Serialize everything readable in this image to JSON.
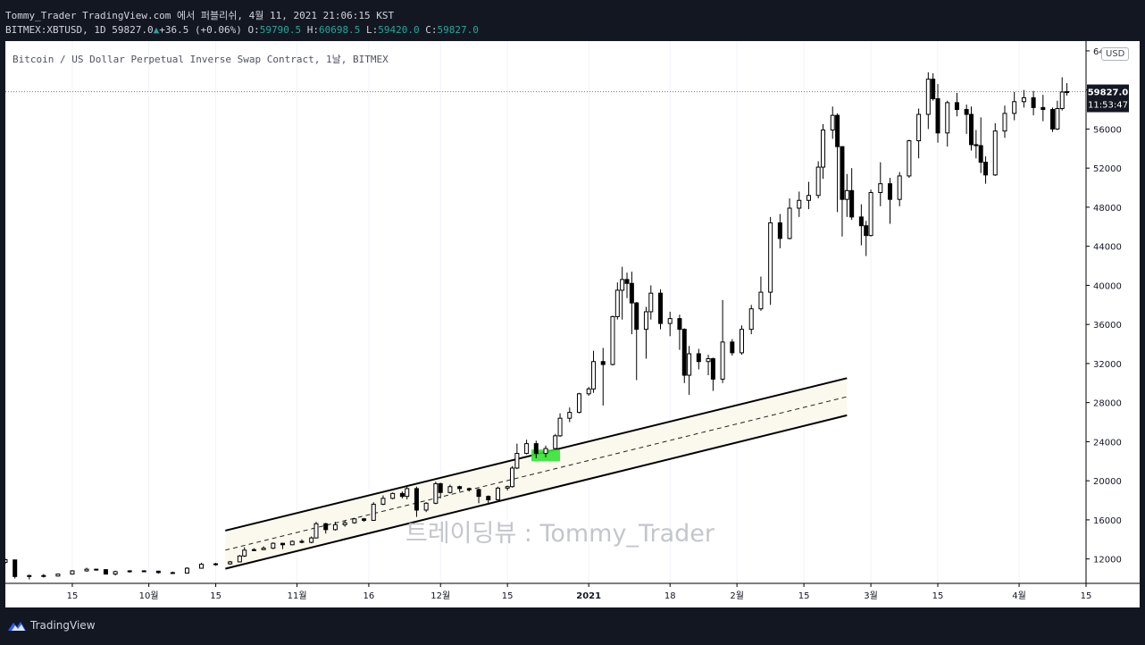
{
  "header": {
    "line1": "Tommy_Trader TradingView.com 에서 퍼블리쉬, 4월 11, 2021 21:06:15 KST",
    "symbol": "BITMEX:XBTUSD, 1D",
    "last": "59827.0",
    "arrow": "▲",
    "change": "+36.5 (+0.06%)",
    "o_label": "O:",
    "o": "59790.5",
    "h_label": "H:",
    "h": "60698.5",
    "l_label": "L:",
    "l": "59420.0",
    "c_label": "C:",
    "c": "59827.0"
  },
  "chart": {
    "title": "Bitcoin / US Dollar Perpetual Inverse Swap Contract, 1날, BITMEX",
    "currency": "USD",
    "watermark": "트레이딩뷰 : Tommy_Trader",
    "price_label": "59827.0",
    "countdown": "11:53:47"
  },
  "footer": {
    "brand": "TradingView"
  },
  "colors": {
    "background": "#131722",
    "chart_bg": "#ffffff",
    "candle": "#000000",
    "channel_fill": "#fbf9ee",
    "highlight": "#33e233",
    "price_tag": "#131722"
  },
  "chart_data": {
    "type": "candlestick",
    "ylim": [
      9500,
      65000
    ],
    "yticks": [
      12000,
      16000,
      20000,
      24000,
      28000,
      32000,
      36000,
      40000,
      44000,
      48000,
      52000,
      56000,
      60000,
      64000
    ],
    "ytick_labels": [
      "12000",
      "16000",
      "20000",
      "24000",
      "28000",
      "32000",
      "36000",
      "40000",
      "44000",
      "48000",
      "52000",
      "56000",
      "60000",
      "64000"
    ],
    "x_range": [
      "2020-09-01",
      "2021-04-15"
    ],
    "xticks": [
      {
        "date": "2020-09-15",
        "label": "15"
      },
      {
        "date": "2020-10-01",
        "label": "10월"
      },
      {
        "date": "2020-10-15",
        "label": "15"
      },
      {
        "date": "2020-11-01",
        "label": "11월"
      },
      {
        "date": "2020-11-16",
        "label": "16"
      },
      {
        "date": "2020-12-01",
        "label": "12월"
      },
      {
        "date": "2020-12-15",
        "label": "15"
      },
      {
        "date": "2021-01-01",
        "label": "2021"
      },
      {
        "date": "2021-01-18",
        "label": "18"
      },
      {
        "date": "2021-02-01",
        "label": "2월"
      },
      {
        "date": "2021-02-15",
        "label": "15"
      },
      {
        "date": "2021-03-01",
        "label": "3월"
      },
      {
        "date": "2021-03-15",
        "label": "15"
      },
      {
        "date": "2021-04-01",
        "label": "4월"
      },
      {
        "date": "2021-04-15",
        "label": "15"
      }
    ],
    "last_price": 59827.0,
    "channel": {
      "upper": [
        {
          "date": "2020-10-17",
          "y": 14900
        },
        {
          "date": "2021-02-24",
          "y": 30500
        }
      ],
      "middle": [
        {
          "date": "2020-10-17",
          "y": 12900
        },
        {
          "date": "2021-02-24",
          "y": 28600
        }
      ],
      "lower": [
        {
          "date": "2020-10-17",
          "y": 11000
        },
        {
          "date": "2021-02-24",
          "y": 26700
        }
      ]
    },
    "highlight_box": {
      "x0": "2020-12-20",
      "x1": "2020-12-26",
      "y0": 22000,
      "y1": 23200
    },
    "ohlc": [
      [
        "2020-09-01",
        11660,
        12050,
        11500,
        11920
      ],
      [
        "2020-09-03",
        11900,
        11920,
        10000,
        10200
      ],
      [
        "2020-09-06",
        10200,
        10400,
        9900,
        10300
      ],
      [
        "2020-09-09",
        10300,
        10450,
        10100,
        10250
      ],
      [
        "2020-09-12",
        10250,
        10500,
        10200,
        10450
      ],
      [
        "2020-09-15",
        10450,
        10850,
        10400,
        10780
      ],
      [
        "2020-09-18",
        10780,
        11100,
        10700,
        10950
      ],
      [
        "2020-09-20",
        10950,
        11000,
        10800,
        10900
      ],
      [
        "2020-09-22",
        10900,
        10950,
        10400,
        10450
      ],
      [
        "2020-09-24",
        10450,
        10800,
        10300,
        10700
      ],
      [
        "2020-09-27",
        10700,
        10850,
        10600,
        10780
      ],
      [
        "2020-09-30",
        10780,
        10850,
        10650,
        10750
      ],
      [
        "2020-10-03",
        10750,
        10800,
        10500,
        10600
      ],
      [
        "2020-10-06",
        10600,
        10700,
        10500,
        10550
      ],
      [
        "2020-10-09",
        10550,
        11150,
        10500,
        11050
      ],
      [
        "2020-10-12",
        11050,
        11600,
        11000,
        11450
      ],
      [
        "2020-10-15",
        11450,
        11600,
        11300,
        11500
      ],
      [
        "2020-10-18",
        11500,
        11800,
        11400,
        11700
      ],
      [
        "2020-10-20",
        11700,
        12400,
        11650,
        12300
      ],
      [
        "2020-10-21",
        12300,
        13200,
        12200,
        12900
      ],
      [
        "2020-10-23",
        12900,
        13100,
        12800,
        12950
      ],
      [
        "2020-10-25",
        12950,
        13300,
        12900,
        13100
      ],
      [
        "2020-10-27",
        13100,
        13700,
        13000,
        13600
      ],
      [
        "2020-10-29",
        13600,
        13650,
        13000,
        13450
      ],
      [
        "2020-10-31",
        13450,
        13900,
        13400,
        13800
      ],
      [
        "2020-11-02",
        13800,
        14000,
        13600,
        13700
      ],
      [
        "2020-11-04",
        13700,
        14300,
        13600,
        14150
      ],
      [
        "2020-11-05",
        14150,
        15800,
        14100,
        15600
      ],
      [
        "2020-11-07",
        15600,
        15700,
        14600,
        15000
      ],
      [
        "2020-11-09",
        15000,
        15800,
        14900,
        15500
      ],
      [
        "2020-11-11",
        15500,
        15900,
        15300,
        15700
      ],
      [
        "2020-11-13",
        15700,
        16200,
        15600,
        16100
      ],
      [
        "2020-11-15",
        16100,
        16200,
        15800,
        15950
      ],
      [
        "2020-11-17",
        15950,
        17800,
        15900,
        17600
      ],
      [
        "2020-11-19",
        17600,
        18500,
        17500,
        18200
      ],
      [
        "2020-11-21",
        18200,
        18800,
        18100,
        18700
      ],
      [
        "2020-11-23",
        18700,
        18900,
        18200,
        18400
      ],
      [
        "2020-11-24",
        18400,
        19400,
        18100,
        19200
      ],
      [
        "2020-11-26",
        19200,
        19400,
        16300,
        17000
      ],
      [
        "2020-11-28",
        17000,
        17800,
        16800,
        17700
      ],
      [
        "2020-11-30",
        17700,
        19900,
        17600,
        19700
      ],
      [
        "2020-12-01",
        19700,
        19800,
        18200,
        18800
      ],
      [
        "2020-12-03",
        18800,
        19600,
        18700,
        19400
      ],
      [
        "2020-12-05",
        19400,
        19500,
        18900,
        19200
      ],
      [
        "2020-12-07",
        19200,
        19300,
        18900,
        19100
      ],
      [
        "2020-12-09",
        19100,
        19200,
        17700,
        18400
      ],
      [
        "2020-12-11",
        18400,
        18500,
        17600,
        18050
      ],
      [
        "2020-12-13",
        18050,
        19400,
        18000,
        19250
      ],
      [
        "2020-12-15",
        19250,
        19500,
        19000,
        19400
      ],
      [
        "2020-12-16",
        19400,
        21500,
        19300,
        21300
      ],
      [
        "2020-12-17",
        21300,
        23800,
        21200,
        22800
      ],
      [
        "2020-12-19",
        22800,
        24200,
        22700,
        23800
      ],
      [
        "2020-12-21",
        23800,
        24100,
        22300,
        22800
      ],
      [
        "2020-12-23",
        22800,
        23600,
        22400,
        23300
      ],
      [
        "2020-12-25",
        23300,
        24800,
        23200,
        24600
      ],
      [
        "2020-12-26",
        24600,
        26900,
        24500,
        26400
      ],
      [
        "2020-12-28",
        26400,
        27500,
        26000,
        27000
      ],
      [
        "2020-12-30",
        27000,
        29000,
        26900,
        28900
      ],
      [
        "2021-01-01",
        28900,
        29600,
        28700,
        29400
      ],
      [
        "2021-01-02",
        29400,
        33300,
        29000,
        32200
      ],
      [
        "2021-01-04",
        32200,
        33600,
        27700,
        31900
      ],
      [
        "2021-01-06",
        31900,
        36900,
        31800,
        36800
      ],
      [
        "2021-01-07",
        36800,
        40300,
        36500,
        39500
      ],
      [
        "2021-01-08",
        39500,
        41900,
        36500,
        40600
      ],
      [
        "2021-01-09",
        40600,
        41300,
        38700,
        40200
      ],
      [
        "2021-01-10",
        40200,
        41400,
        35000,
        38200
      ],
      [
        "2021-01-11",
        38200,
        38300,
        30300,
        35500
      ],
      [
        "2021-01-13",
        35500,
        37800,
        32500,
        37300
      ],
      [
        "2021-01-14",
        37300,
        40000,
        36500,
        39200
      ],
      [
        "2021-01-16",
        39200,
        39600,
        35500,
        36100
      ],
      [
        "2021-01-18",
        36100,
        37300,
        34800,
        36600
      ],
      [
        "2021-01-20",
        36600,
        37000,
        33400,
        35500
      ],
      [
        "2021-01-21",
        35500,
        35600,
        30000,
        30800
      ],
      [
        "2021-01-22",
        30800,
        33800,
        28800,
        33000
      ],
      [
        "2021-01-24",
        33000,
        33500,
        31400,
        32200
      ],
      [
        "2021-01-26",
        32200,
        32900,
        30800,
        32500
      ],
      [
        "2021-01-27",
        32500,
        32600,
        29200,
        30400
      ],
      [
        "2021-01-29",
        30400,
        38500,
        30000,
        34200
      ],
      [
        "2021-01-31",
        34200,
        34500,
        32800,
        33100
      ],
      [
        "2021-02-02",
        33100,
        35900,
        32900,
        35500
      ],
      [
        "2021-02-04",
        35500,
        38000,
        35000,
        37600
      ],
      [
        "2021-02-06",
        37600,
        40900,
        37400,
        39300
      ],
      [
        "2021-02-08",
        39300,
        47000,
        38000,
        46400
      ],
      [
        "2021-02-10",
        46400,
        47300,
        43800,
        44800
      ],
      [
        "2021-02-12",
        44800,
        48900,
        44700,
        47900
      ],
      [
        "2021-02-14",
        47900,
        49600,
        47000,
        48700
      ],
      [
        "2021-02-16",
        48700,
        50600,
        47800,
        49200
      ],
      [
        "2021-02-18",
        49200,
        52700,
        48900,
        52100
      ],
      [
        "2021-02-19",
        52100,
        56500,
        50900,
        55900
      ],
      [
        "2021-02-21",
        55900,
        58300,
        55000,
        57400
      ],
      [
        "2021-02-22",
        57400,
        57600,
        47500,
        54200
      ],
      [
        "2021-02-23",
        54200,
        54200,
        45000,
        48800
      ],
      [
        "2021-02-24",
        48800,
        51400,
        47000,
        49700
      ],
      [
        "2021-02-25",
        49700,
        52000,
        46700,
        47000
      ],
      [
        "2021-02-27",
        47000,
        48300,
        44100,
        46100
      ],
      [
        "2021-02-28",
        46100,
        46600,
        43000,
        45100
      ],
      [
        "2021-03-01",
        45100,
        49800,
        45000,
        49500
      ],
      [
        "2021-03-03",
        49500,
        52600,
        48100,
        50400
      ],
      [
        "2021-03-05",
        50400,
        51000,
        46300,
        48800
      ],
      [
        "2021-03-07",
        48800,
        51600,
        48100,
        51200
      ],
      [
        "2021-03-09",
        51200,
        54900,
        51000,
        54800
      ],
      [
        "2021-03-11",
        54800,
        58100,
        53000,
        57500
      ],
      [
        "2021-03-13",
        57500,
        61800,
        56000,
        61100
      ],
      [
        "2021-03-14",
        61100,
        61700,
        58900,
        59100
      ],
      [
        "2021-03-15",
        59100,
        60600,
        54600,
        55600
      ],
      [
        "2021-03-17",
        55600,
        58900,
        54200,
        58700
      ],
      [
        "2021-03-19",
        58700,
        59700,
        57300,
        58000
      ],
      [
        "2021-03-21",
        58000,
        58500,
        55500,
        57500
      ],
      [
        "2021-03-22",
        57500,
        58300,
        53800,
        54400
      ],
      [
        "2021-03-23",
        54400,
        55900,
        53000,
        54300
      ],
      [
        "2021-03-24",
        54300,
        57200,
        51500,
        52600
      ],
      [
        "2021-03-25",
        52600,
        53200,
        50400,
        51300
      ],
      [
        "2021-03-27",
        51300,
        56600,
        51200,
        55800
      ],
      [
        "2021-03-29",
        55800,
        58400,
        55100,
        57600
      ],
      [
        "2021-03-31",
        57600,
        59800,
        56900,
        58800
      ],
      [
        "2021-04-02",
        58800,
        60000,
        58200,
        59200
      ],
      [
        "2021-04-04",
        59200,
        59900,
        57400,
        58200
      ],
      [
        "2021-04-06",
        58200,
        59500,
        56800,
        58000
      ],
      [
        "2021-04-08",
        58000,
        58200,
        55700,
        56000
      ],
      [
        "2021-04-09",
        56000,
        58900,
        55900,
        58100
      ],
      [
        "2021-04-10",
        58100,
        61300,
        57900,
        59790
      ],
      [
        "2021-04-11",
        59790,
        60698,
        59420,
        59827
      ]
    ]
  }
}
